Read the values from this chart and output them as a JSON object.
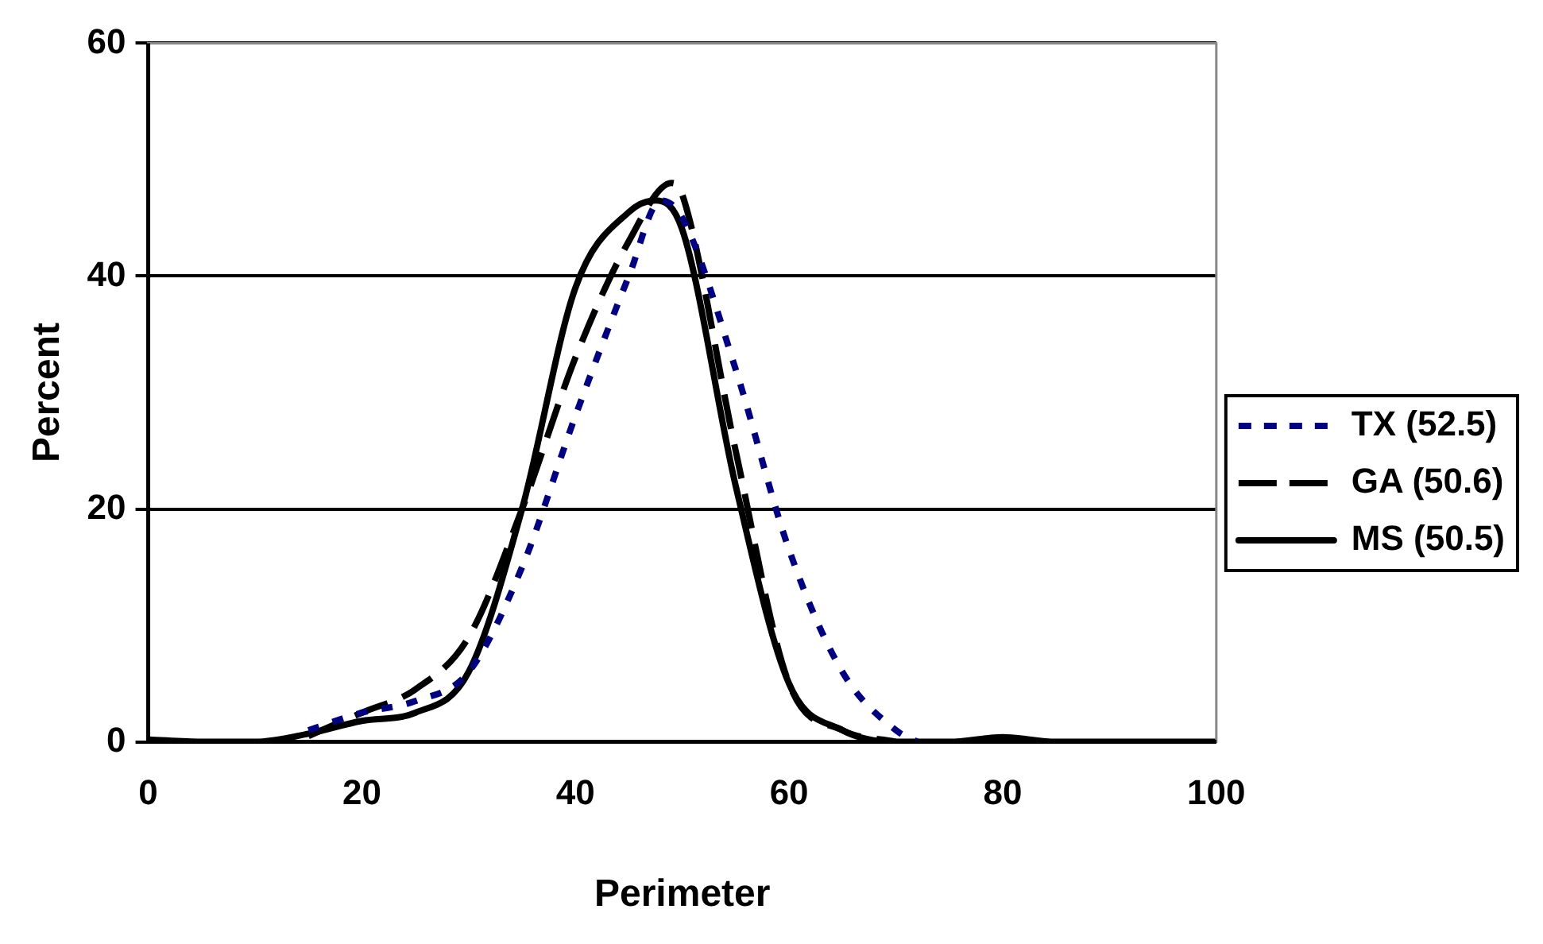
{
  "chart_data": {
    "type": "line",
    "xlabel": "Perimeter",
    "ylabel": "Percent",
    "xlim": [
      0,
      100
    ],
    "xticks": [
      0,
      20,
      40,
      60,
      80,
      100
    ],
    "ylim": [
      0,
      60
    ],
    "yticks": [
      0,
      20,
      40,
      60
    ],
    "grid": "y",
    "legend": "right",
    "marker": "none",
    "series": [
      {
        "name": "TX (52.5)",
        "color": "#000080",
        "line_style": "dotted",
        "x": [
          15,
          20,
          25,
          30,
          35,
          40,
          45,
          48,
          50,
          55,
          60,
          65,
          70,
          72
        ],
        "values": [
          1,
          2.5,
          3.5,
          6,
          15,
          28,
          40,
          46.5,
          45,
          32,
          16.5,
          6,
          1,
          0
        ]
      },
      {
        "name": "GA (50.6)",
        "color": "#000000",
        "line_style": "dashed",
        "x": [
          15,
          20,
          25,
          30,
          35,
          40,
          45,
          49,
          50,
          55,
          60,
          65,
          70
        ],
        "values": [
          0.5,
          2.5,
          4.5,
          9,
          20,
          33,
          43,
          48,
          47,
          25,
          5,
          1,
          0
        ]
      },
      {
        "name": "MS (50.5)",
        "color": "#000000",
        "line_style": "solid",
        "x": [
          0,
          5,
          10,
          15,
          20,
          25,
          30,
          35,
          40,
          45,
          47.5,
          50,
          55,
          60,
          65,
          70,
          75,
          80,
          85,
          90,
          100
        ],
        "values": [
          0.2,
          0,
          0,
          0.7,
          1.8,
          2.5,
          6,
          20,
          39,
          45.5,
          46.5,
          44,
          22,
          5,
          1,
          0,
          0,
          0.4,
          0,
          0,
          0
        ]
      }
    ]
  }
}
